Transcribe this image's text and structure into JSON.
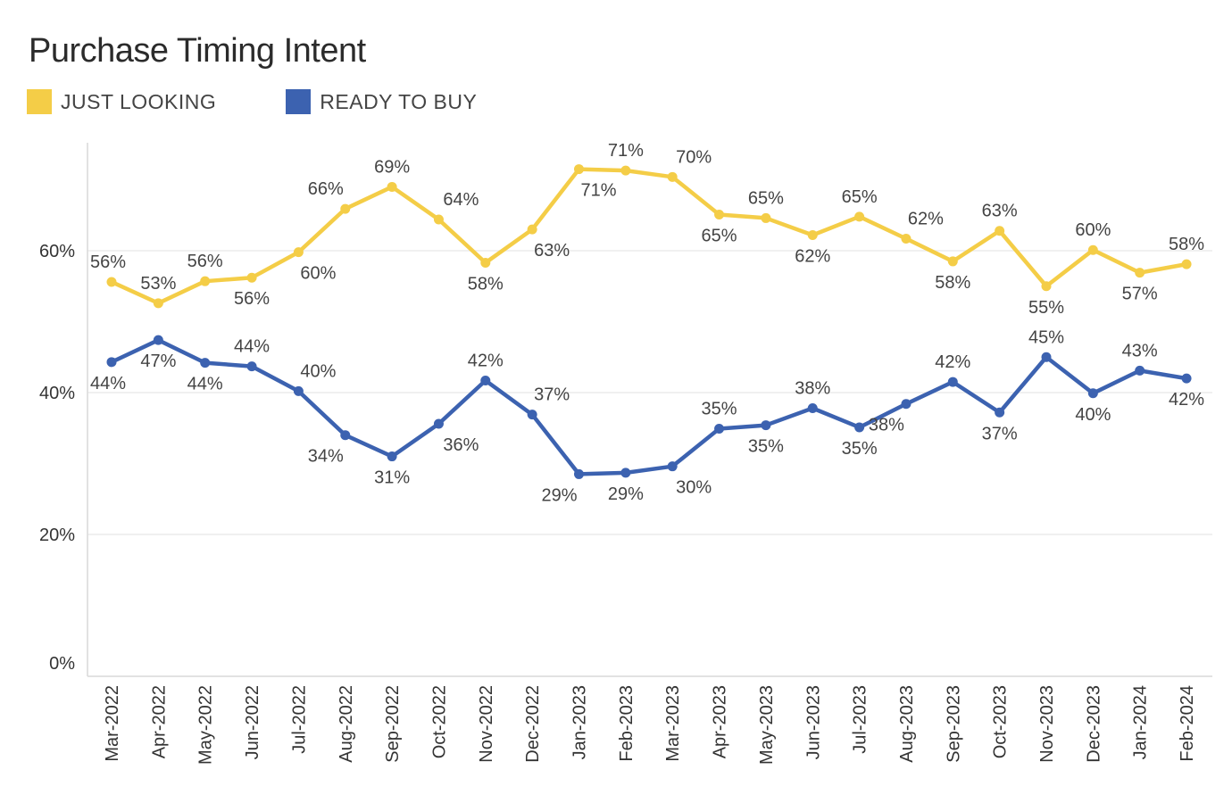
{
  "colors": {
    "just_looking": "#f4cd47",
    "ready_to_buy": "#3c62b0",
    "grid": "#ececec",
    "axis": "#d9d9d9"
  },
  "chart_data": {
    "type": "line",
    "title": "Purchase Timing Intent",
    "legend_position": "top-left",
    "grid": true,
    "ylim": [
      0,
      75
    ],
    "yticks": [
      0,
      20,
      40,
      60
    ],
    "ytick_labels": [
      "0%",
      "20%",
      "40%",
      "60%"
    ],
    "categories": [
      "Mar-2022",
      "Apr-2022",
      "May-2022",
      "Jun-2022",
      "Jul-2022",
      "Aug-2022",
      "Sep-2022",
      "Oct-2022",
      "Nov-2022",
      "Dec-2022",
      "Jan-2023",
      "Feb-2023",
      "Mar-2023",
      "Apr-2023",
      "May-2023",
      "Jun-2023",
      "Jul-2023",
      "Aug-2023",
      "Sep-2023",
      "Oct-2023",
      "Nov-2023",
      "Dec-2023",
      "Jan-2024",
      "Feb-2024"
    ],
    "series": [
      {
        "name": "JUST LOOKING",
        "color": "#f4cd47",
        "values": [
          55.6,
          52.6,
          55.7,
          56.2,
          59.8,
          65.9,
          69.0,
          64.4,
          58.3,
          63.0,
          71.5,
          71.3,
          70.4,
          65.1,
          64.6,
          62.2,
          64.8,
          61.7,
          58.5,
          62.8,
          55.0,
          60.1,
          56.9,
          58.1
        ],
        "labels": [
          "56%",
          "53%",
          "56%",
          "56%",
          "60%",
          "66%",
          "69%",
          "64%",
          "58%",
          "63%",
          "71%",
          "71%",
          "70%",
          "65%",
          "65%",
          "62%",
          "65%",
          "62%",
          "58%",
          "63%",
          "55%",
          "60%",
          "57%",
          "58%"
        ]
      },
      {
        "name": "READY TO BUY",
        "color": "#3c62b0",
        "values": [
          44.3,
          47.4,
          44.2,
          43.7,
          40.2,
          34.0,
          31.0,
          35.6,
          41.7,
          36.9,
          28.5,
          28.7,
          29.6,
          34.9,
          35.4,
          37.8,
          35.1,
          38.4,
          41.5,
          37.2,
          45.0,
          39.9,
          43.1,
          42.0
        ],
        "labels": [
          "44%",
          "47%",
          "44%",
          "44%",
          "40%",
          "34%",
          "31%",
          "36%",
          "42%",
          "37%",
          "29%",
          "29%",
          "30%",
          "35%",
          "35%",
          "38%",
          "35%",
          "38%",
          "42%",
          "37%",
          "45%",
          "40%",
          "43%",
          "42%"
        ]
      }
    ]
  }
}
